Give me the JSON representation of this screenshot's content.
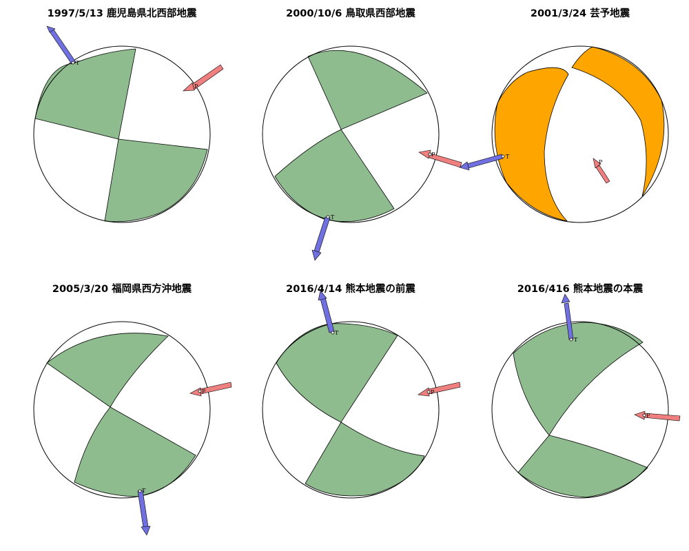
{
  "figure": {
    "colors": {
      "compression": "#8fbc8f",
      "compression_alt": "#ffa500",
      "p_axis": "#f08080",
      "t_axis": "#7070e0",
      "outline": "#000000"
    },
    "panels": [
      {
        "title": "1997/5/13 鹿児島県北西部地震",
        "fill": "compression",
        "axes": [
          {
            "label": "T"
          },
          {
            "label": "P"
          }
        ]
      },
      {
        "title": "2000/10/6 鳥取県西部地震",
        "fill": "compression",
        "axes": [
          {
            "label": "P"
          },
          {
            "label": "T"
          }
        ]
      },
      {
        "title": "2001/3/24 芸予地震",
        "fill": "compression_alt",
        "axes": [
          {
            "label": "T"
          },
          {
            "label": "P"
          }
        ]
      },
      {
        "title": "2005/3/20 福岡県西方沖地震",
        "fill": "compression",
        "axes": [
          {
            "label": "P"
          },
          {
            "label": "T"
          }
        ]
      },
      {
        "title": "2016/4/14 熊本地震の前震",
        "fill": "compression",
        "axes": [
          {
            "label": "T"
          },
          {
            "label": "P"
          }
        ]
      },
      {
        "title": "2016/416 熊本地震の本震",
        "fill": "compression",
        "axes": [
          {
            "label": "T"
          },
          {
            "label": "P"
          }
        ]
      }
    ]
  }
}
